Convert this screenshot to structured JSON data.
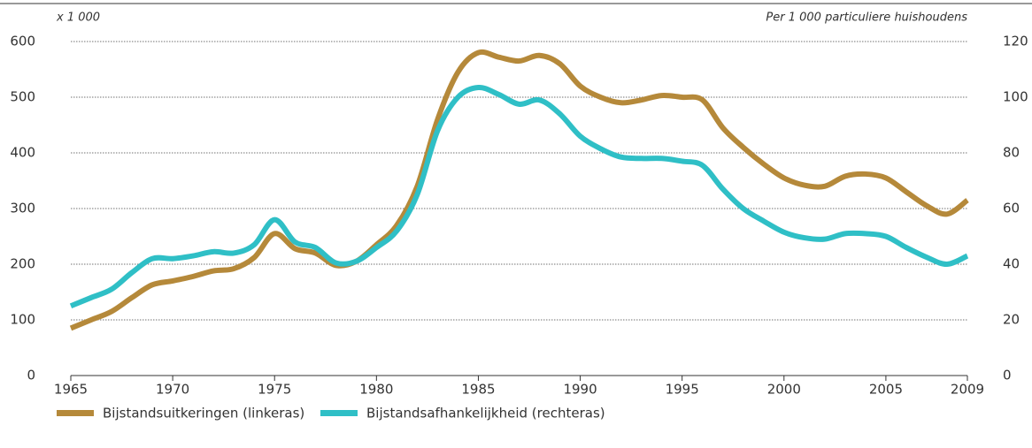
{
  "chart_data": {
    "type": "line",
    "y_axis_label": "x 1 000",
    "y2_axis_label": "Per 1 000 particuliere huishoudens",
    "x": [
      1965,
      1966,
      1967,
      1968,
      1969,
      1970,
      1971,
      1972,
      1973,
      1974,
      1975,
      1976,
      1977,
      1978,
      1979,
      1980,
      1981,
      1982,
      1983,
      1984,
      1985,
      1986,
      1987,
      1988,
      1989,
      1990,
      1991,
      1992,
      1993,
      1994,
      1995,
      1996,
      1997,
      1998,
      1999,
      2000,
      2001,
      2002,
      2003,
      2004,
      2005,
      2006,
      2007,
      2008,
      2009
    ],
    "xlim": [
      1965,
      2009
    ],
    "xticks": [
      1965,
      1970,
      1975,
      1980,
      1985,
      1990,
      1995,
      2000,
      2005,
      2009
    ],
    "ylim": [
      0,
      600
    ],
    "yticks": [
      0,
      100,
      200,
      300,
      400,
      500,
      600
    ],
    "y2lim": [
      0,
      120
    ],
    "y2ticks": [
      0,
      20,
      40,
      60,
      80,
      100,
      120
    ],
    "grid": true,
    "legend": "bottom",
    "series": [
      {
        "name": "Bijstandsuitkeringen (linkeras)",
        "color": "#b5893a",
        "values": [
          85,
          100,
          115,
          140,
          163,
          170,
          178,
          188,
          192,
          212,
          255,
          228,
          220,
          198,
          205,
          235,
          270,
          340,
          460,
          545,
          580,
          572,
          565,
          575,
          560,
          520,
          500,
          490,
          495,
          503,
          500,
          495,
          445,
          410,
          380,
          355,
          342,
          340,
          358,
          362,
          355,
          330,
          305,
          290,
          315
        ]
      },
      {
        "name": "Bijstandsafhankelijkheid (rechteras)",
        "color": "#2fbfc6",
        "axis": "y2",
        "values": [
          25,
          28,
          31,
          37,
          42,
          42,
          43,
          44.5,
          44,
          47,
          56,
          48,
          46,
          40.5,
          41,
          46,
          52,
          65,
          88,
          100,
          103.5,
          101,
          97.5,
          99,
          94,
          86,
          81.5,
          78.5,
          78,
          78,
          77,
          75.5,
          67,
          60,
          55.5,
          51.5,
          49.5,
          49,
          51,
          51,
          50,
          46,
          42.5,
          40,
          43
        ]
      }
    ]
  }
}
